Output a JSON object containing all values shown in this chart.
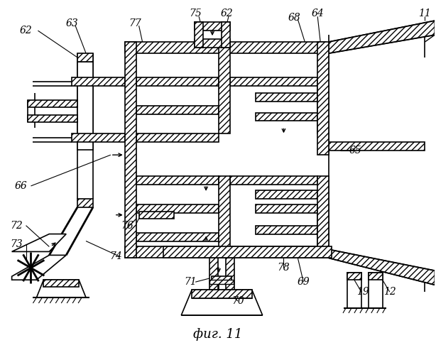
{
  "title": "фиг. 11",
  "bg_color": "#ffffff",
  "line_color": "#000000",
  "figsize": [
    6.14,
    5.0
  ],
  "dpi": 100,
  "labels": [
    [
      "62",
      32,
      42
    ],
    [
      "63",
      100,
      32
    ],
    [
      "77",
      185,
      32
    ],
    [
      "75",
      272,
      18
    ],
    [
      "62",
      318,
      18
    ],
    [
      "68",
      412,
      22
    ],
    [
      "64",
      442,
      18
    ],
    [
      "11",
      598,
      18
    ],
    [
      "65",
      502,
      210
    ],
    [
      "66",
      28,
      262
    ],
    [
      "72",
      22,
      318
    ],
    [
      "73",
      22,
      345
    ],
    [
      "74",
      162,
      362
    ],
    [
      "76",
      178,
      318
    ],
    [
      "71",
      268,
      398
    ],
    [
      "78",
      398,
      378
    ],
    [
      "69",
      422,
      398
    ],
    [
      "70",
      332,
      422
    ],
    [
      "19",
      508,
      412
    ],
    [
      "12",
      548,
      412
    ]
  ]
}
